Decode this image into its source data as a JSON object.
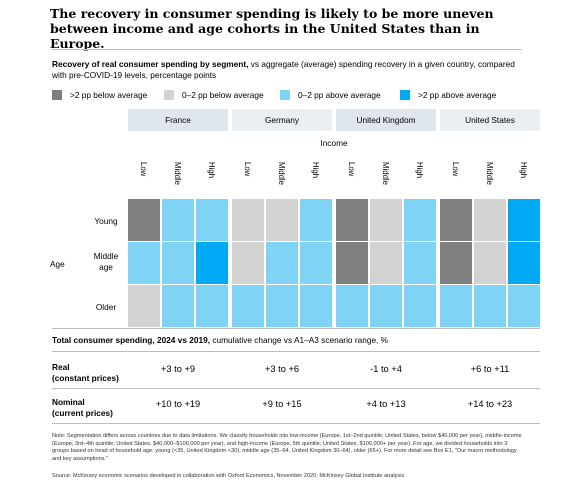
{
  "title": "The recovery in consumer spending is likely to be more uneven between income and age cohorts in the United States than in Europe.",
  "subtitle_bold": "Recovery of real consumer spending by segment,",
  "subtitle_rest": " vs aggregate (average) spending recovery in a given country, compared with pre-COVID-19 levels, percentage points",
  "legend": [
    {
      "label": ">2 pp below average",
      "color": "#7f7f7f"
    },
    {
      "label": "0–2 pp below average",
      "color": "#d2d2d2"
    },
    {
      "label": "0–2 pp above average",
      "color": "#7fd3f5"
    },
    {
      "label": ">2 pp above average",
      "color": "#00a9f4"
    }
  ],
  "chart_data": {
    "type": "heatmap",
    "countries": [
      "France",
      "Germany",
      "United Kingdom",
      "United States"
    ],
    "column_group_label": "Income",
    "income_levels": [
      "Low",
      "Middle",
      "High"
    ],
    "row_group_label": "Age",
    "age_levels": [
      "Young",
      "Middle age",
      "Older"
    ],
    "categories": [
      ">2 pp below average",
      "0–2 pp below average",
      "0–2 pp above average",
      ">2 pp above average"
    ],
    "cells": [
      [
        [
          0,
          2,
          2
        ],
        [
          2,
          2,
          3
        ],
        [
          1,
          2,
          2
        ]
      ],
      [
        [
          1,
          1,
          2
        ],
        [
          1,
          2,
          2
        ],
        [
          2,
          2,
          2
        ]
      ],
      [
        [
          0,
          1,
          2
        ],
        [
          0,
          1,
          2
        ],
        [
          2,
          2,
          2
        ]
      ],
      [
        [
          0,
          1,
          3
        ],
        [
          0,
          1,
          3
        ],
        [
          2,
          2,
          2
        ]
      ]
    ]
  },
  "table": {
    "heading_bold": "Total consumer spending, 2024 vs 2019,",
    "heading_rest": " cumulative change vs A1–A3 scenario range, %",
    "rows": [
      {
        "label_line1": "Real",
        "label_line2": "(constant prices)",
        "values": [
          "+3 to +9",
          "+3 to +6",
          "-1 to +4",
          "+6 to +11"
        ]
      },
      {
        "label_line1": "Nominal",
        "label_line2": "(current prices)",
        "values": [
          "+10 to +19",
          "+9 to +15",
          "+4 to +13",
          "+14 to +23"
        ]
      }
    ]
  },
  "note_1": "Note: Segmentation differs across countries due to data limitations. We classify households into low-income (Europe, 1st–2nd quintile; United States, below $40,000 per year), middle-income (Europe, 3rd–4th quintile; United States, $40,000–$100,000 per year), and high-income (Europe, 5th quintile; United States, $100,000+ per year). For age, we divided households into 3 groups based on head of household age: young (<35, United Kingdom <30), middle age (35–64, United Kingdom 30–64), older (65+). For more detail see Box E1, \"Our macro methodology and key assumptions.\"",
  "note_2": "Source: McKinsey economic scenarios developed in collaboration with Oxford Economics, November 2020; McKinsey Global Institute analysis"
}
